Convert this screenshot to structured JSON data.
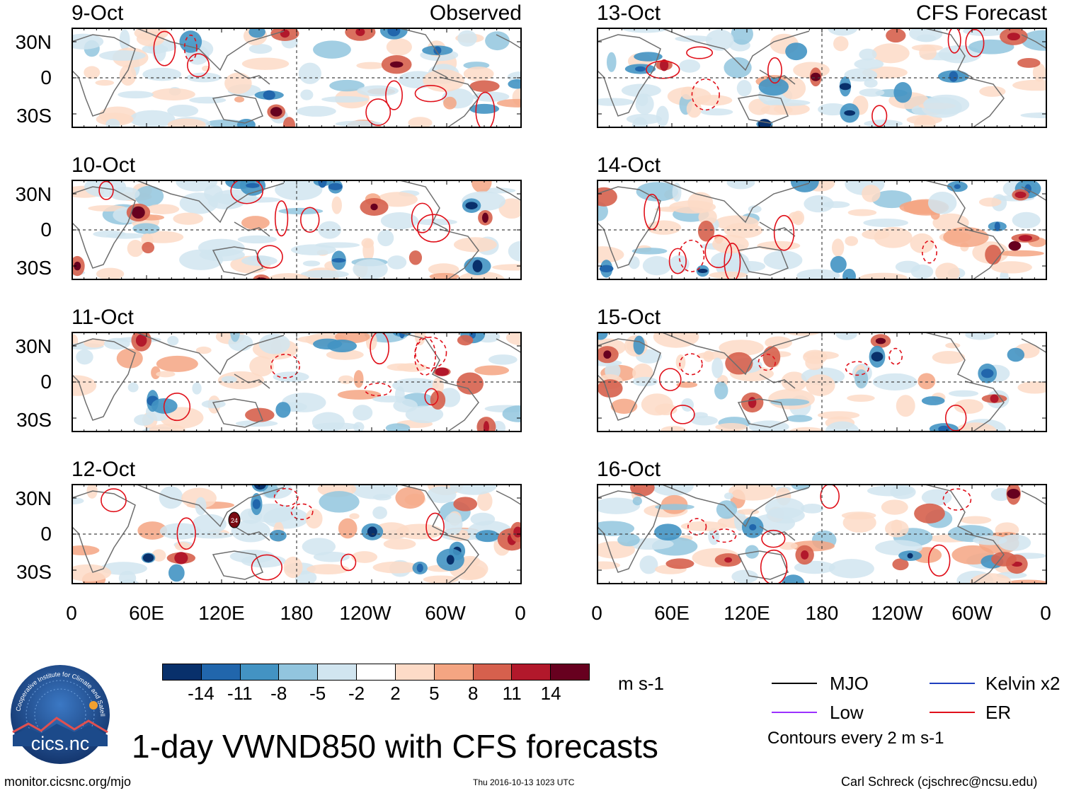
{
  "panels": {
    "observed_header": "Observed",
    "forecast_header": "CFS Forecast",
    "observed_dates": [
      "9-Oct",
      "10-Oct",
      "11-Oct",
      "12-Oct"
    ],
    "forecast_dates": [
      "13-Oct",
      "14-Oct",
      "15-Oct",
      "16-Oct"
    ],
    "lat_labels": [
      "30N",
      "0",
      "30S"
    ],
    "lon_labels": [
      "0",
      "60E",
      "120E",
      "180",
      "120W",
      "60W",
      "0"
    ],
    "marker_label": "24"
  },
  "colorbar": {
    "ticks": [
      "-14",
      "-11",
      "-8",
      "-5",
      "-2",
      "2",
      "5",
      "8",
      "11",
      "14"
    ],
    "colors": [
      "#08306b",
      "#2166ac",
      "#4393c3",
      "#92c5de",
      "#d1e5f0",
      "#ffffff",
      "#fddbc7",
      "#f4a582",
      "#d6604d",
      "#b2182b",
      "#67001f"
    ],
    "units": "m s-1"
  },
  "legend": {
    "items": [
      {
        "label": "MJO",
        "color": "#000000"
      },
      {
        "label": "Kelvin x2",
        "color": "#1f3fbf"
      },
      {
        "label": "Low",
        "color": "#9b30ff"
      },
      {
        "label": "ER",
        "color": "#e0101a"
      }
    ],
    "contour_note": "Contours every 2 m s-1"
  },
  "title": "1-day VWND850 with CFS forecasts",
  "footer": {
    "url": "monitor.cicsnc.org/mjo",
    "timestamp": "Thu 2016-10-13 1023 UTC",
    "credit": "Carl Schreck (cjschrec@ncsu.edu)"
  },
  "logo": {
    "text": "cics.nc",
    "ring_text": "Cooperative Institute for Climate and Satellites"
  }
}
